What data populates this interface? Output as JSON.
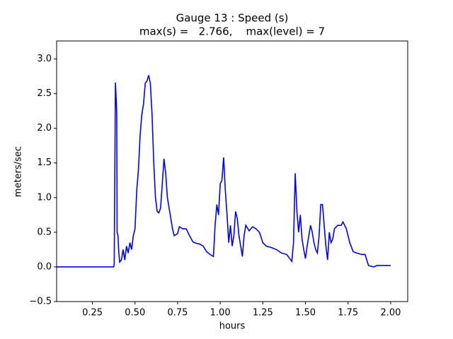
{
  "chart_data": {
    "type": "line",
    "title": "Gauge 13 : Speed (s)",
    "subtitle": "max(s) =   2.766,    max(level) = 7",
    "x_label": "hours",
    "y_label": "meters/sec",
    "xlim": [
      0.04,
      2.1
    ],
    "ylim": [
      -0.5,
      3.26
    ],
    "xticks": [
      {
        "value": 0.25,
        "label": "0.25"
      },
      {
        "value": 0.5,
        "label": "0.50"
      },
      {
        "value": 0.75,
        "label": "0.75"
      },
      {
        "value": 1.0,
        "label": "1.00"
      },
      {
        "value": 1.25,
        "label": "1.25"
      },
      {
        "value": 1.5,
        "label": "1.50"
      },
      {
        "value": 1.75,
        "label": "1.75"
      },
      {
        "value": 2.0,
        "label": "2.00"
      }
    ],
    "yticks": [
      {
        "value": -0.5,
        "label": "−0.5"
      },
      {
        "value": 0,
        "label": "0.0"
      },
      {
        "value": 0.5,
        "label": "0.5"
      },
      {
        "value": 1.0,
        "label": "1.0"
      },
      {
        "value": 1.5,
        "label": "1.5"
      },
      {
        "value": 2.0,
        "label": "2.0"
      },
      {
        "value": 2.5,
        "label": "2.5"
      },
      {
        "value": 3.0,
        "label": "3.0"
      }
    ],
    "series": [
      {
        "color": "#0000ff",
        "x": [
          0.04,
          0.375,
          0.378,
          0.385,
          0.39,
          0.393,
          0.395,
          0.4,
          0.405,
          0.41,
          0.42,
          0.43,
          0.44,
          0.45,
          0.46,
          0.47,
          0.48,
          0.49,
          0.5,
          0.51,
          0.52,
          0.53,
          0.54,
          0.55,
          0.56,
          0.57,
          0.58,
          0.59,
          0.6,
          0.61,
          0.62,
          0.63,
          0.64,
          0.65,
          0.66,
          0.67,
          0.68,
          0.69,
          0.7,
          0.71,
          0.72,
          0.73,
          0.75,
          0.76,
          0.78,
          0.8,
          0.82,
          0.84,
          0.86,
          0.88,
          0.9,
          0.92,
          0.94,
          0.96,
          0.97,
          0.98,
          0.99,
          1.0,
          1.01,
          1.02,
          1.03,
          1.04,
          1.05,
          1.06,
          1.07,
          1.08,
          1.09,
          1.1,
          1.11,
          1.12,
          1.13,
          1.14,
          1.15,
          1.17,
          1.19,
          1.21,
          1.23,
          1.25,
          1.27,
          1.3,
          1.33,
          1.36,
          1.39,
          1.42,
          1.43,
          1.44,
          1.45,
          1.46,
          1.47,
          1.48,
          1.49,
          1.5,
          1.51,
          1.52,
          1.53,
          1.54,
          1.55,
          1.56,
          1.57,
          1.58,
          1.59,
          1.6,
          1.61,
          1.62,
          1.63,
          1.64,
          1.65,
          1.66,
          1.67,
          1.69,
          1.71,
          1.72,
          1.74,
          1.76,
          1.78,
          1.8,
          1.83,
          1.85,
          1.86,
          1.87,
          1.9,
          1.92,
          1.95,
          2.0
        ],
        "values": [
          0,
          0,
          0.05,
          2.66,
          2.4,
          2.2,
          0.5,
          0.45,
          0.2,
          0.07,
          0.1,
          0.25,
          0.1,
          0.3,
          0.2,
          0.35,
          0.25,
          0.45,
          0.55,
          1.1,
          1.4,
          1.9,
          2.2,
          2.35,
          2.65,
          2.68,
          2.766,
          2.65,
          2.2,
          1.5,
          1.0,
          0.8,
          0.78,
          0.85,
          1.2,
          1.56,
          1.35,
          1.0,
          0.85,
          0.7,
          0.55,
          0.45,
          0.48,
          0.58,
          0.55,
          0.55,
          0.45,
          0.36,
          0.34,
          0.33,
          0.3,
          0.22,
          0.18,
          0.15,
          0.6,
          0.9,
          0.75,
          1.2,
          1.25,
          1.58,
          1.1,
          0.75,
          0.35,
          0.6,
          0.3,
          0.45,
          0.8,
          0.7,
          0.45,
          0.3,
          0.15,
          0.45,
          0.6,
          0.52,
          0.58,
          0.55,
          0.5,
          0.35,
          0.3,
          0.28,
          0.25,
          0.2,
          0.18,
          0.08,
          0.35,
          1.35,
          0.8,
          0.5,
          0.75,
          0.4,
          0.25,
          0.12,
          0.3,
          0.45,
          0.6,
          0.5,
          0.35,
          0.25,
          0.2,
          0.45,
          0.9,
          0.9,
          0.6,
          0.3,
          0.1,
          0.5,
          0.35,
          0.4,
          0.55,
          0.6,
          0.6,
          0.65,
          0.55,
          0.35,
          0.22,
          0.2,
          0.18,
          0.18,
          0.1,
          0.02,
          0.0,
          0.02,
          0.02,
          0.02
        ]
      }
    ]
  }
}
